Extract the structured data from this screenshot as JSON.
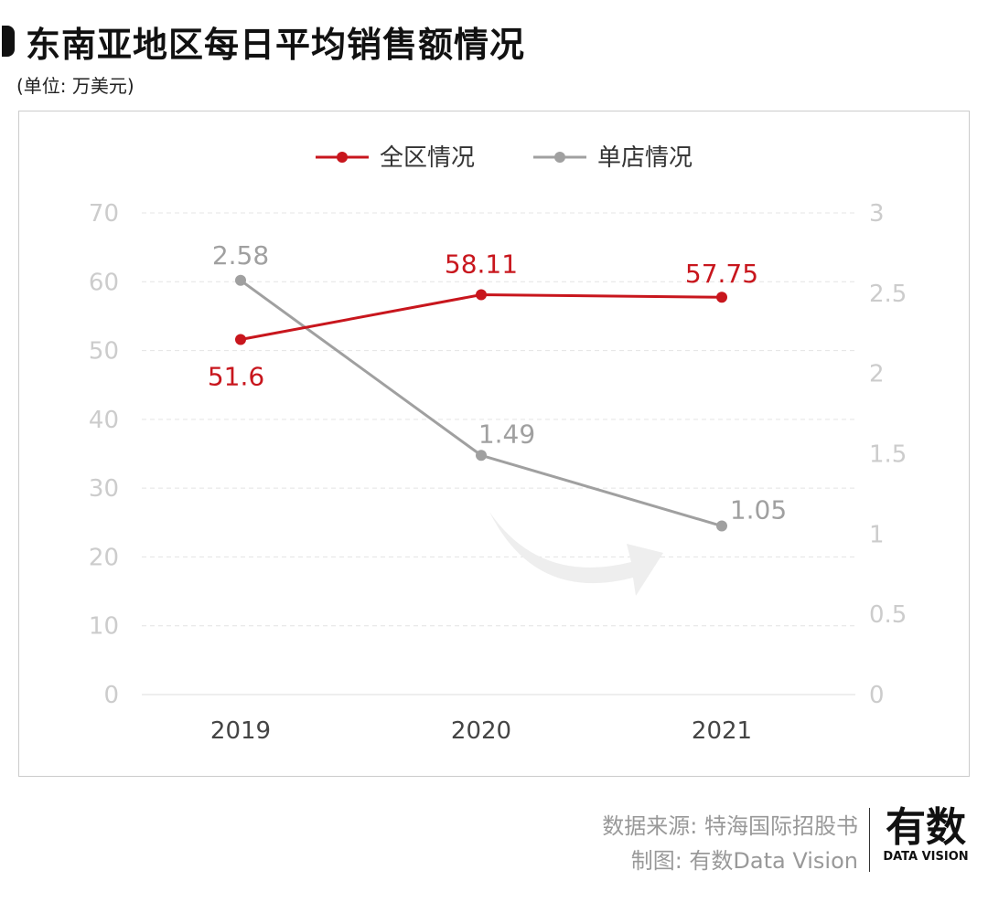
{
  "title": "东南亚地区每日平均销售额情况",
  "subtitle": "(单位: 万美元)",
  "source": "数据来源: 特海国际招股书",
  "credit": "制图: 有数Data Vision",
  "logo": {
    "cn": "有数",
    "en": "DATA VISION"
  },
  "chart_data": {
    "type": "line",
    "categories": [
      "2019",
      "2020",
      "2021"
    ],
    "y_left": {
      "range": [
        0,
        70
      ],
      "ticks": [
        "0",
        "10",
        "20",
        "30",
        "40",
        "50",
        "60",
        "70"
      ]
    },
    "y_right": {
      "range": [
        0,
        3
      ],
      "ticks": [
        "0",
        "0.5",
        "1",
        "1.5",
        "2",
        "2.5",
        "3"
      ]
    },
    "grid": true,
    "legend_placement": "top-center",
    "series": [
      {
        "name": "全区情况",
        "axis": "left",
        "color": "#c8161d",
        "values": [
          51.6,
          58.11,
          57.75
        ],
        "labels": [
          "51.6",
          "58.11",
          "57.75"
        ]
      },
      {
        "name": "单店情况",
        "axis": "right",
        "color": "#a0a0a0",
        "values": [
          2.58,
          1.49,
          1.05
        ],
        "labels": [
          "2.58",
          "1.49",
          "1.05"
        ]
      }
    ]
  }
}
